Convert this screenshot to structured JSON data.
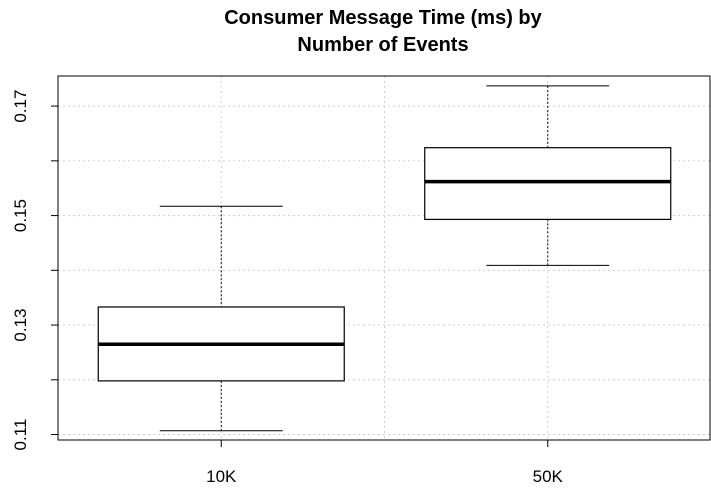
{
  "chart_data": {
    "type": "box",
    "title_lines": [
      "Consumer Message Time (ms) by",
      "Number of Events"
    ],
    "xlabel": "",
    "ylabel": "",
    "categories": [
      "10K",
      "50K"
    ],
    "boxes": [
      {
        "category": "10K",
        "min": 0.1107,
        "q1": 0.1198,
        "median": 0.1265,
        "q3": 0.1333,
        "max": 0.1517
      },
      {
        "category": "50K",
        "min": 0.1409,
        "q1": 0.1493,
        "median": 0.1562,
        "q3": 0.1624,
        "max": 0.1737
      }
    ],
    "ylim": [
      0.109,
      0.1755
    ],
    "y_ticks": [
      0.11,
      0.12,
      0.13,
      0.14,
      0.15,
      0.16,
      0.17
    ],
    "y_tick_labels": [
      "0.11",
      "",
      "0.13",
      "",
      "0.15",
      "",
      "0.17"
    ],
    "grid": true
  }
}
